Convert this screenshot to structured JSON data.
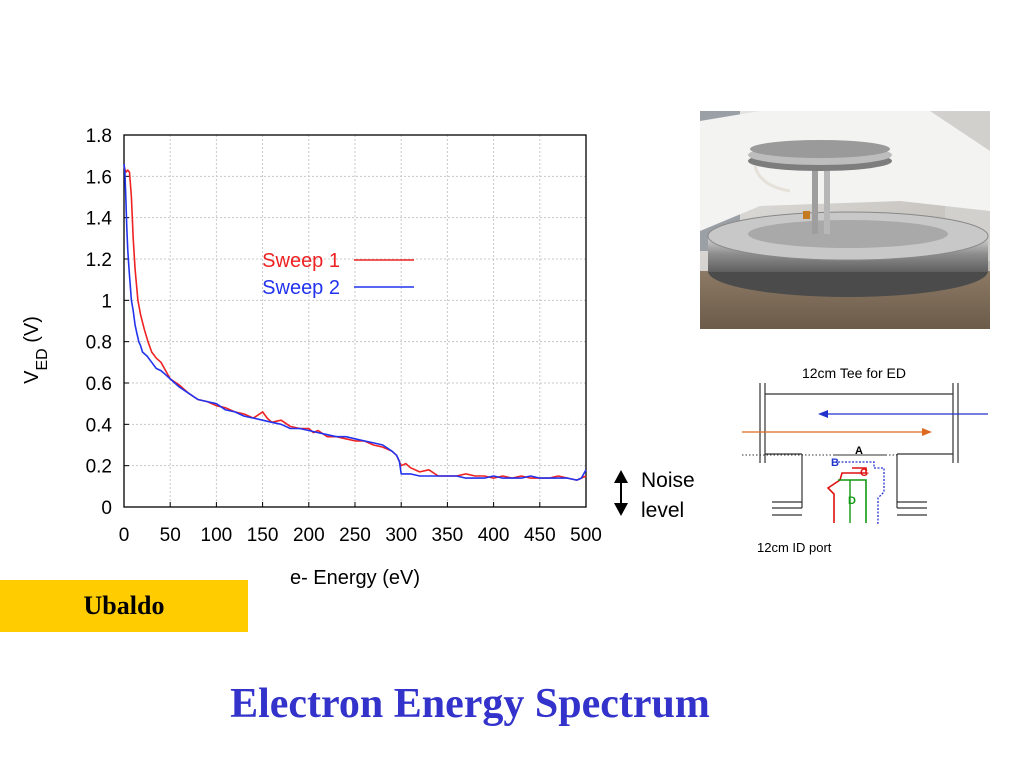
{
  "slide": {
    "title": "Electron Energy Spectrum",
    "author": "Ubaldo",
    "noise_label_line1": "Noise",
    "noise_label_line2": "level",
    "photo_icon": "apparatus-photo"
  },
  "diagram": {
    "title": "12cm Tee  for ED",
    "port_label": "12cm ID port",
    "labels": {
      "a": "A",
      "b": "B",
      "c": "C",
      "d": "D"
    },
    "colors": {
      "blue": "#2233cc",
      "orange": "#dd6a1f",
      "red": "#dd1111",
      "green": "#119911"
    }
  },
  "chart_data": {
    "type": "line",
    "xlabel": "e- Energy (eV)",
    "ylabel_main": "V",
    "ylabel_sub": "ED",
    "ylabel_unit": " (V)",
    "xlim": [
      0,
      500
    ],
    "ylim": [
      0,
      1.8
    ],
    "xticks": [
      0,
      50,
      100,
      150,
      200,
      250,
      300,
      350,
      400,
      450,
      500
    ],
    "yticks": [
      0,
      0.2,
      0.4,
      0.6,
      0.8,
      1,
      1.2,
      1.4,
      1.6,
      1.8
    ],
    "ytick_labels": [
      "0",
      "0.2",
      "0.4",
      "0.6",
      "0.8",
      "1",
      "1.2",
      "1.4",
      "1.6",
      "1.8"
    ],
    "grid": true,
    "legend_position": "upper-middle",
    "series": [
      {
        "name": "Sweep 1",
        "color": "#ee2222",
        "x": [
          0,
          2,
          4,
          6,
          8,
          10,
          12,
          15,
          18,
          22,
          26,
          30,
          35,
          40,
          45,
          50,
          60,
          70,
          80,
          90,
          100,
          110,
          120,
          130,
          140,
          150,
          155,
          160,
          170,
          180,
          190,
          200,
          205,
          210,
          220,
          230,
          240,
          250,
          260,
          270,
          280,
          290,
          295,
          300,
          305,
          310,
          320,
          330,
          340,
          350,
          360,
          370,
          380,
          390,
          400,
          410,
          420,
          430,
          440,
          450,
          460,
          470,
          480,
          490,
          500
        ],
        "y": [
          1.65,
          1.62,
          1.63,
          1.62,
          1.5,
          1.3,
          1.15,
          1.0,
          0.93,
          0.86,
          0.8,
          0.75,
          0.72,
          0.7,
          0.66,
          0.62,
          0.59,
          0.55,
          0.52,
          0.51,
          0.49,
          0.48,
          0.46,
          0.45,
          0.43,
          0.46,
          0.43,
          0.41,
          0.42,
          0.39,
          0.38,
          0.38,
          0.36,
          0.37,
          0.34,
          0.34,
          0.33,
          0.32,
          0.32,
          0.3,
          0.29,
          0.27,
          0.25,
          0.2,
          0.21,
          0.19,
          0.17,
          0.18,
          0.15,
          0.15,
          0.15,
          0.16,
          0.15,
          0.15,
          0.14,
          0.15,
          0.14,
          0.15,
          0.14,
          0.14,
          0.14,
          0.15,
          0.14,
          0.13,
          0.15
        ]
      },
      {
        "name": "Sweep 2",
        "color": "#2233ee",
        "x": [
          0,
          1,
          2,
          3,
          4,
          5,
          6,
          8,
          10,
          12,
          14,
          16,
          18,
          20,
          25,
          30,
          35,
          40,
          45,
          50,
          60,
          70,
          80,
          90,
          100,
          110,
          120,
          130,
          140,
          150,
          160,
          170,
          180,
          190,
          200,
          210,
          220,
          230,
          240,
          250,
          260,
          270,
          280,
          290,
          295,
          298,
          300,
          310,
          320,
          330,
          340,
          350,
          360,
          370,
          380,
          390,
          400,
          410,
          420,
          430,
          440,
          450,
          460,
          470,
          480,
          490,
          495,
          500
        ],
        "y": [
          1.66,
          1.62,
          1.5,
          1.35,
          1.25,
          1.18,
          1.12,
          1.0,
          0.95,
          0.88,
          0.84,
          0.8,
          0.78,
          0.75,
          0.73,
          0.7,
          0.67,
          0.66,
          0.64,
          0.62,
          0.58,
          0.55,
          0.52,
          0.51,
          0.5,
          0.47,
          0.46,
          0.44,
          0.43,
          0.42,
          0.41,
          0.4,
          0.38,
          0.38,
          0.37,
          0.36,
          0.35,
          0.34,
          0.34,
          0.33,
          0.32,
          0.31,
          0.3,
          0.27,
          0.25,
          0.22,
          0.16,
          0.16,
          0.15,
          0.15,
          0.15,
          0.15,
          0.15,
          0.14,
          0.14,
          0.14,
          0.15,
          0.14,
          0.14,
          0.14,
          0.15,
          0.14,
          0.14,
          0.14,
          0.14,
          0.13,
          0.14,
          0.18
        ]
      }
    ]
  }
}
